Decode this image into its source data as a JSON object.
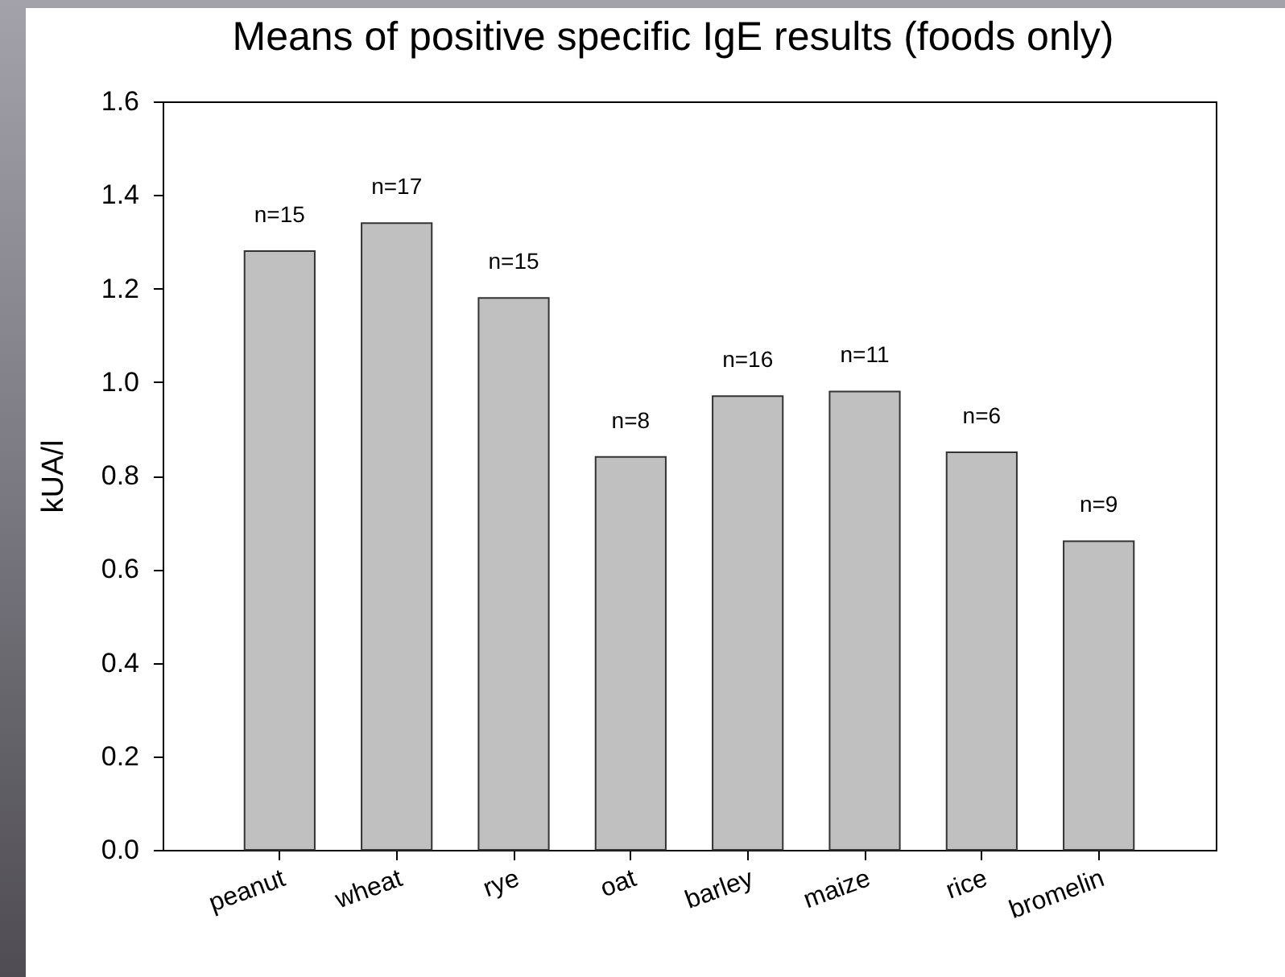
{
  "chart_data": {
    "type": "bar",
    "title": "Means of positive specific IgE results (foods only)",
    "ylabel": "kUA/l",
    "categories": [
      "peanut",
      "wheat",
      "rye",
      "oat",
      "barley",
      "maize",
      "rice",
      "bromelin"
    ],
    "values": [
      1.28,
      1.34,
      1.18,
      0.84,
      0.97,
      0.98,
      0.85,
      0.66
    ],
    "color": "#c0c0c0",
    "annotations": [
      {
        "text": "n=15",
        "x": "peanut",
        "y": 1.28
      },
      {
        "text": "n=17",
        "x": "wheat",
        "y": 1.34
      },
      {
        "text": "n=15",
        "x": "rye",
        "y": 1.18
      },
      {
        "text": "n=8",
        "x": "oat",
        "y": 0.84
      },
      {
        "text": "n=16",
        "x": "barley",
        "y": 0.97
      },
      {
        "text": "n=11",
        "x": "maize",
        "y": 0.98
      },
      {
        "text": "n=6",
        "x": "rice",
        "y": 0.85
      },
      {
        "text": "n=9",
        "x": "bromelin",
        "y": 0.66
      }
    ],
    "ylim": [
      0,
      1.6
    ],
    "yticks": [
      {
        "value": 0,
        "label": "0.0"
      },
      0.2,
      0.4,
      0.6,
      0.8,
      {
        "value": 1,
        "label": "1.0"
      },
      1.2,
      1.4,
      1.6
    ]
  }
}
